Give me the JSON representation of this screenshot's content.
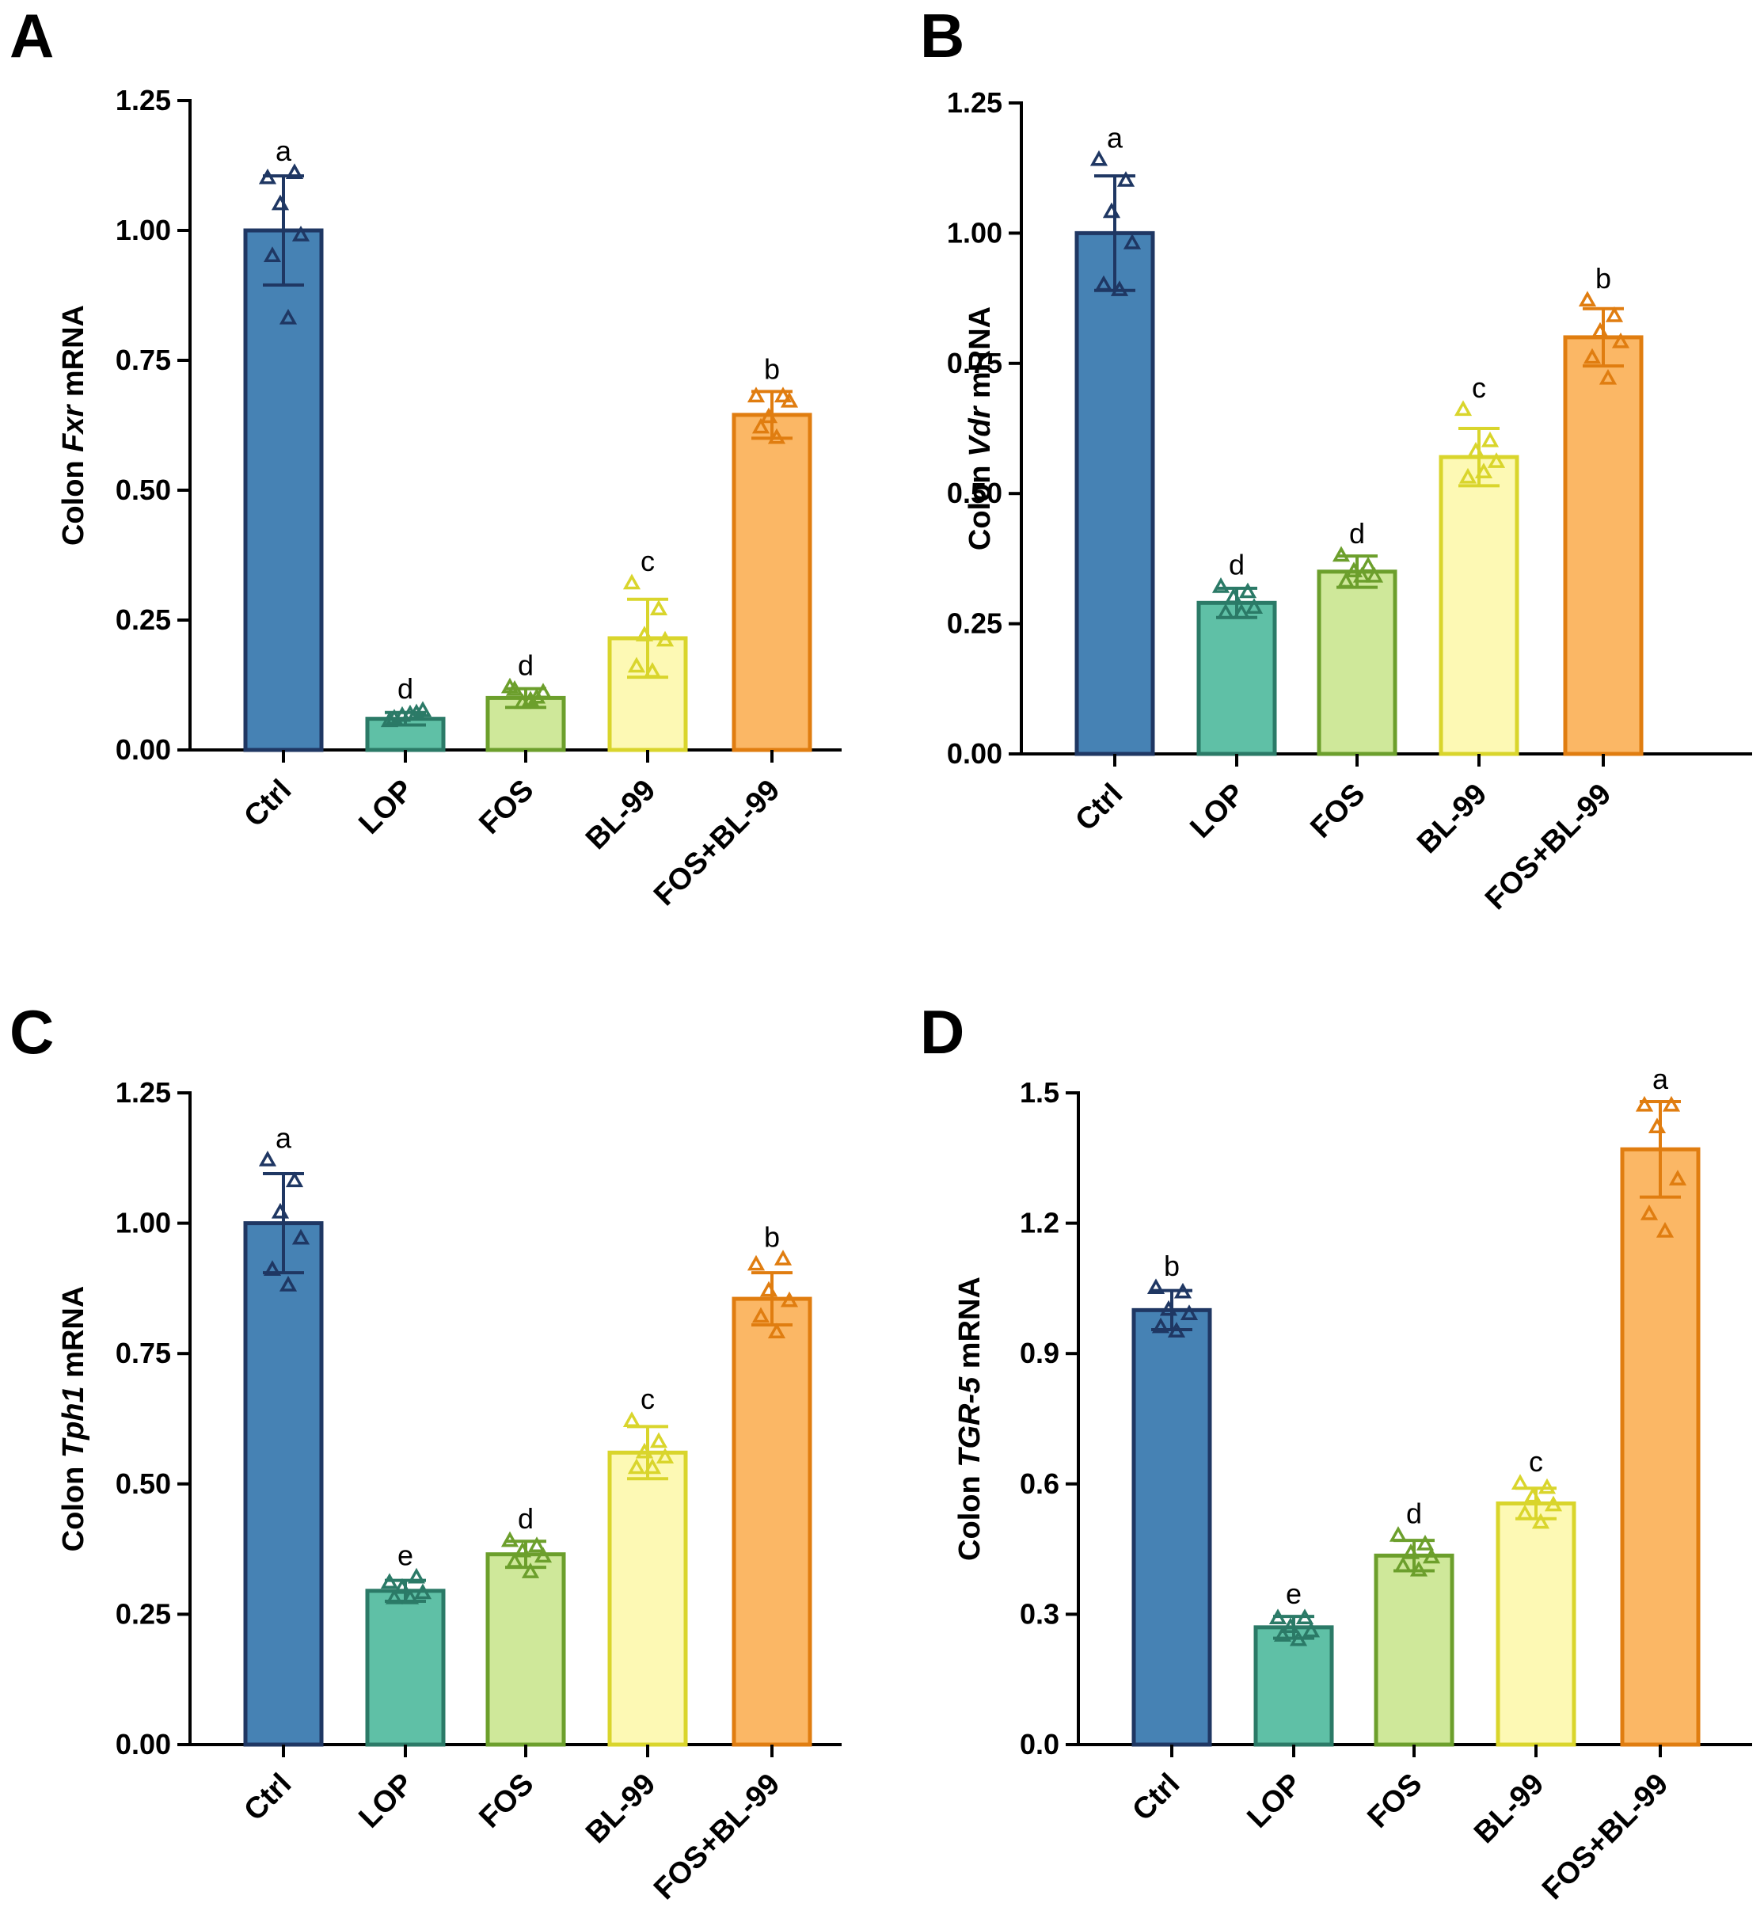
{
  "group_colors": {
    "Ctrl": {
      "fill": "#4682b4",
      "stroke": "#1f3763"
    },
    "LOP": {
      "fill": "#5fc0a6",
      "stroke": "#2b7a67"
    },
    "FOS": {
      "fill": "#cfe89a",
      "stroke": "#6c9f2c"
    },
    "BL-99": {
      "fill": "#fdf9b4",
      "stroke": "#d9d52c"
    },
    "FOS+BL-99": {
      "fill": "#fbb765",
      "stroke": "#e07d10"
    }
  },
  "chart_data": [
    {
      "panel": "A",
      "type": "bar",
      "ylabel_prefix": "Colon ",
      "ylabel_gene": "Fxr",
      "ylabel_suffix": " mRNA",
      "ylim": [
        0,
        1.25
      ],
      "yticks": [
        "0.00",
        "0.25",
        "0.50",
        "0.75",
        "1.00",
        "1.25"
      ],
      "categories": [
        "Ctrl",
        "LOP",
        "FOS",
        "BL-99",
        "FOS+BL-99"
      ],
      "values": [
        1.0,
        0.06,
        0.1,
        0.215,
        0.645
      ],
      "errors": [
        0.105,
        0.012,
        0.018,
        0.075,
        0.045
      ],
      "significance": [
        "a",
        "d",
        "d",
        "c",
        "b"
      ],
      "points": [
        [
          1.1,
          1.11,
          1.05,
          0.99,
          0.95,
          0.83
        ],
        [
          0.055,
          0.07,
          0.065,
          0.075,
          0.06,
          0.068
        ],
        [
          0.12,
          0.1,
          0.09,
          0.11,
          0.115,
          0.095
        ],
        [
          0.32,
          0.27,
          0.22,
          0.21,
          0.16,
          0.15
        ],
        [
          0.68,
          0.68,
          0.64,
          0.67,
          0.62,
          0.6
        ]
      ]
    },
    {
      "panel": "B",
      "type": "bar",
      "ylabel_prefix": "Colon ",
      "ylabel_gene": "Vdr",
      "ylabel_suffix": " mRNA",
      "ylim": [
        0,
        1.25
      ],
      "yticks": [
        "0.00",
        "0.25",
        "0.50",
        "0.75",
        "1.00",
        "1.25"
      ],
      "categories": [
        "Ctrl",
        "LOP",
        "FOS",
        "BL-99",
        "FOS+BL-99"
      ],
      "values": [
        1.0,
        0.29,
        0.35,
        0.57,
        0.8
      ],
      "errors": [
        0.11,
        0.028,
        0.03,
        0.055,
        0.055
      ],
      "significance": [
        "a",
        "d",
        "d",
        "c",
        "b"
      ],
      "points": [
        [
          1.14,
          1.1,
          1.04,
          0.98,
          0.9,
          0.89
        ],
        [
          0.32,
          0.31,
          0.3,
          0.28,
          0.27,
          0.27
        ],
        [
          0.38,
          0.36,
          0.35,
          0.34,
          0.33,
          0.34
        ],
        [
          0.66,
          0.6,
          0.58,
          0.56,
          0.53,
          0.54
        ],
        [
          0.87,
          0.84,
          0.81,
          0.79,
          0.76,
          0.72
        ]
      ]
    },
    {
      "panel": "C",
      "type": "bar",
      "ylabel_prefix": "Colon ",
      "ylabel_gene": "Tph1",
      "ylabel_suffix": " mRNA",
      "ylim": [
        0,
        1.25
      ],
      "yticks": [
        "0.00",
        "0.25",
        "0.50",
        "0.75",
        "1.00",
        "1.25"
      ],
      "categories": [
        "Ctrl",
        "LOP",
        "FOS",
        "BL-99",
        "FOS+BL-99"
      ],
      "values": [
        1.0,
        0.295,
        0.365,
        0.56,
        0.855
      ],
      "errors": [
        0.095,
        0.02,
        0.025,
        0.05,
        0.05
      ],
      "significance": [
        "a",
        "e",
        "d",
        "c",
        "b"
      ],
      "points": [
        [
          1.12,
          1.08,
          1.02,
          0.97,
          0.91,
          0.88
        ],
        [
          0.31,
          0.32,
          0.3,
          0.29,
          0.28,
          0.28
        ],
        [
          0.39,
          0.38,
          0.37,
          0.36,
          0.35,
          0.33
        ],
        [
          0.62,
          0.58,
          0.56,
          0.55,
          0.53,
          0.53
        ],
        [
          0.92,
          0.93,
          0.87,
          0.85,
          0.82,
          0.79
        ]
      ]
    },
    {
      "panel": "D",
      "type": "bar",
      "ylabel_prefix": "Colon ",
      "ylabel_gene": "TGR-5",
      "ylabel_suffix": " mRNA",
      "ylim": [
        0,
        1.5
      ],
      "yticks": [
        "0.0",
        "0.3",
        "0.6",
        "0.9",
        "1.2",
        "1.5"
      ],
      "categories": [
        "Ctrl",
        "LOP",
        "FOS",
        "BL-99",
        "FOS+BL-99"
      ],
      "values": [
        1.0,
        0.27,
        0.435,
        0.555,
        1.37
      ],
      "errors": [
        0.045,
        0.025,
        0.035,
        0.035,
        0.11
      ],
      "significance": [
        "b",
        "e",
        "d",
        "c",
        "a"
      ],
      "points": [
        [
          1.05,
          1.04,
          1.0,
          0.99,
          0.96,
          0.95
        ],
        [
          0.29,
          0.29,
          0.27,
          0.26,
          0.25,
          0.24
        ],
        [
          0.48,
          0.46,
          0.44,
          0.43,
          0.41,
          0.4
        ],
        [
          0.6,
          0.59,
          0.57,
          0.55,
          0.53,
          0.51
        ],
        [
          1.47,
          1.47,
          1.42,
          1.3,
          1.22,
          1.18
        ]
      ]
    }
  ]
}
